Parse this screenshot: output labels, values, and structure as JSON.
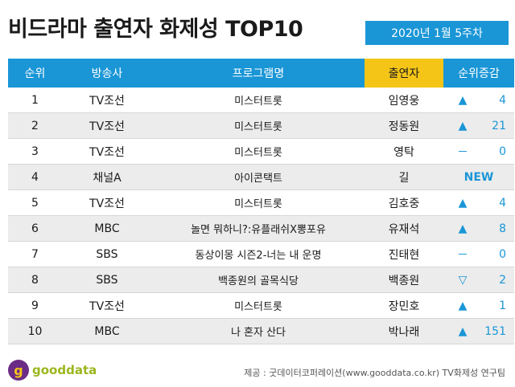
{
  "title": "비드라마 출연자 화제성 TOP10",
  "date": "2020년 1월 5주차",
  "columns": {
    "rank": "순위",
    "broadcaster": "방송사",
    "program": "프로그램명",
    "performer": "출연자",
    "change": "순위증감"
  },
  "rows": [
    {
      "rank": "1",
      "broadcaster": "TV조선",
      "program": "미스터트롯",
      "performer": "임영웅",
      "arrow": "▲",
      "change": "4"
    },
    {
      "rank": "2",
      "broadcaster": "TV조선",
      "program": "미스터트롯",
      "performer": "정동원",
      "arrow": "▲",
      "change": "21"
    },
    {
      "rank": "3",
      "broadcaster": "TV조선",
      "program": "미스터트롯",
      "performer": "영탁",
      "arrow": "－",
      "change": "0"
    },
    {
      "rank": "4",
      "broadcaster": "채널A",
      "program": "아이콘택트",
      "performer": "길",
      "arrow": "",
      "change": "NEW"
    },
    {
      "rank": "5",
      "broadcaster": "TV조선",
      "program": "미스터트롯",
      "performer": "김호중",
      "arrow": "▲",
      "change": "4"
    },
    {
      "rank": "6",
      "broadcaster": "MBC",
      "program": "놀면 뭐하니?:유플래쉬X뽕포유",
      "performer": "유재석",
      "arrow": "▲",
      "change": "8"
    },
    {
      "rank": "7",
      "broadcaster": "SBS",
      "program": "동상이몽 시즌2-너는 내 운명",
      "performer": "진태현",
      "arrow": "－",
      "change": "0"
    },
    {
      "rank": "8",
      "broadcaster": "SBS",
      "program": "백종원의 골목식당",
      "performer": "백종원",
      "arrow": "▽",
      "change": "2"
    },
    {
      "rank": "9",
      "broadcaster": "TV조선",
      "program": "미스터트롯",
      "performer": "장민호",
      "arrow": "▲",
      "change": "1"
    },
    {
      "rank": "10",
      "broadcaster": "MBC",
      "program": "나 혼자 산다",
      "performer": "박나래",
      "arrow": "▲",
      "change": "151"
    }
  ],
  "logo": {
    "mark": "g",
    "text": "gooddata"
  },
  "source": "제공 : 굿데이터코퍼레이션(www.gooddata.co.kr) TV화제성 연구팀",
  "colors": {
    "header_blue": "#1a96d6",
    "highlight_yellow": "#f4c517",
    "row_gray": "#ececec"
  }
}
